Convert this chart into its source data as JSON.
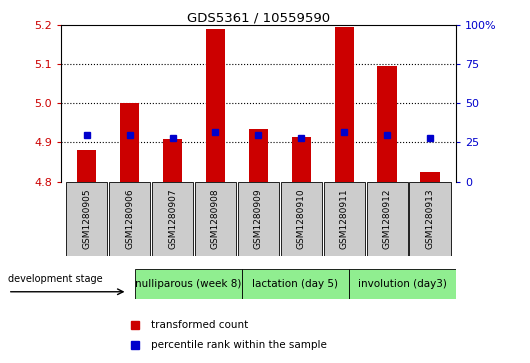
{
  "title": "GDS5361 / 10559590",
  "samples": [
    "GSM1280905",
    "GSM1280906",
    "GSM1280907",
    "GSM1280908",
    "GSM1280909",
    "GSM1280910",
    "GSM1280911",
    "GSM1280912",
    "GSM1280913"
  ],
  "transformed_count": [
    4.882,
    5.0,
    4.91,
    5.19,
    4.935,
    4.915,
    5.195,
    5.095,
    4.825
  ],
  "percentile_rank": [
    30,
    30,
    28,
    32,
    30,
    28,
    32,
    30,
    28
  ],
  "baseline": 4.8,
  "ylim": [
    4.8,
    5.2
  ],
  "y2lim": [
    0,
    100
  ],
  "yticks": [
    4.8,
    4.9,
    5.0,
    5.1,
    5.2
  ],
  "y2ticks": [
    0,
    25,
    50,
    75,
    100
  ],
  "y2ticklabels": [
    "0",
    "25",
    "50",
    "75",
    "100%"
  ],
  "bar_color": "#cc0000",
  "square_color": "#0000cc",
  "bar_width": 0.45,
  "groups": [
    {
      "label": "nulliparous (week 8)",
      "start": 0,
      "end": 3
    },
    {
      "label": "lactation (day 5)",
      "start": 3,
      "end": 6
    },
    {
      "label": "involution (day3)",
      "start": 6,
      "end": 9
    }
  ],
  "group_color": "#90ee90",
  "ytick_color": "#cc0000",
  "y2tick_color": "#0000cc",
  "tick_box_color": "#cccccc",
  "legend_items": [
    {
      "label": "transformed count",
      "color": "#cc0000"
    },
    {
      "label": "percentile rank within the sample",
      "color": "#0000cc"
    }
  ]
}
